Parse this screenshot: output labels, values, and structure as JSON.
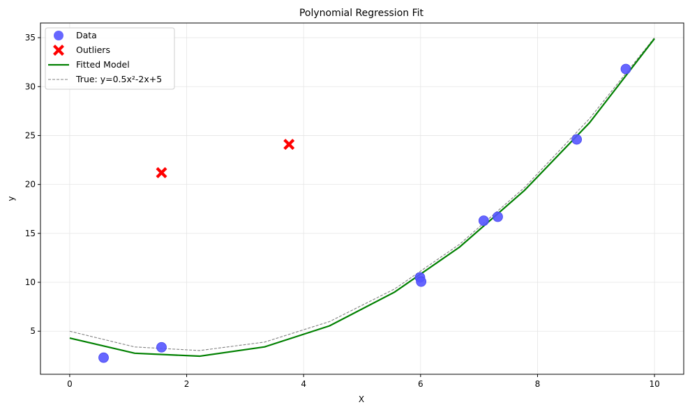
{
  "chart_data": {
    "type": "scatter",
    "title": "Polynomial Regression Fit",
    "xlabel": "X",
    "ylabel": "y",
    "xlim": [
      -0.5,
      10.5
    ],
    "ylim": [
      0.6,
      36.5
    ],
    "xticks": [
      0,
      2,
      4,
      6,
      8,
      10
    ],
    "yticks": [
      5,
      10,
      15,
      20,
      25,
      30,
      35
    ],
    "grid": true,
    "legend_position": "top-left",
    "series": [
      {
        "name": "Data",
        "kind": "scatter",
        "color": "#5555ff",
        "x": [
          0.58,
          1.57,
          5.99,
          6.01,
          7.08,
          7.32,
          8.67,
          9.51
        ],
        "y": [
          2.3,
          3.36,
          10.5,
          10.07,
          16.3,
          16.7,
          24.6,
          31.8
        ]
      },
      {
        "name": "Outliers",
        "kind": "x-marker",
        "color": "#ff0000",
        "x": [
          1.57,
          3.75
        ],
        "y": [
          21.2,
          24.1
        ]
      },
      {
        "name": "Fitted Model",
        "kind": "line",
        "color": "#008000",
        "x": [
          0,
          1.111,
          2.222,
          3.333,
          4.444,
          5.556,
          6.667,
          7.778,
          8.889,
          10
        ],
        "y": [
          4.3,
          2.75,
          2.45,
          3.4,
          5.55,
          9.0,
          13.6,
          19.4,
          26.3,
          34.9
        ]
      },
      {
        "name": "True: y=0.5x²-2x+5",
        "kind": "dashed-line",
        "color": "#808080",
        "x": [
          0,
          1.111,
          2.222,
          3.333,
          4.444,
          5.556,
          6.667,
          7.778,
          8.889,
          10
        ],
        "y": [
          5.0,
          3.395,
          3.025,
          3.889,
          5.988,
          9.321,
          13.889,
          19.691,
          26.728,
          35.0
        ]
      }
    ]
  }
}
